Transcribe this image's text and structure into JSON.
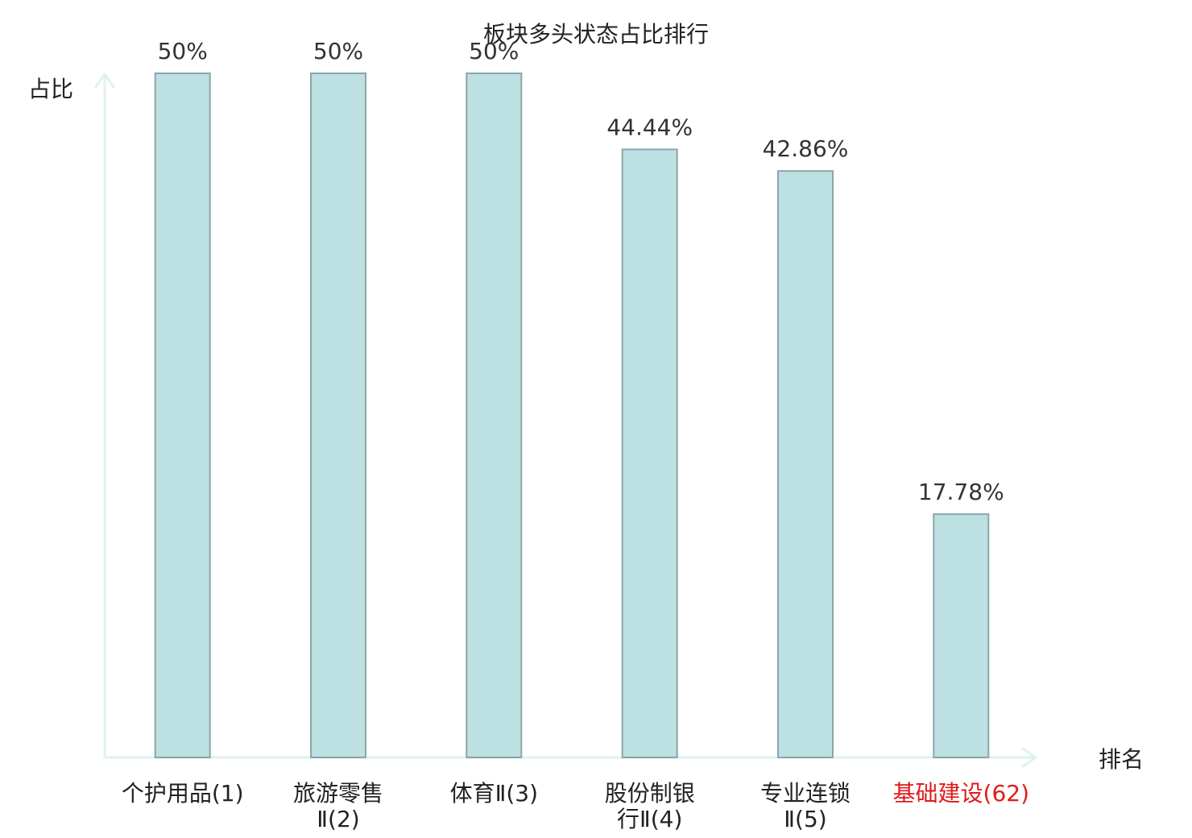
{
  "chart_data": {
    "type": "bar",
    "title": "板块多头状态占比排行",
    "xlabel": "排名",
    "ylabel": "占比",
    "categories": [
      [
        "个护用品(1)"
      ],
      [
        "旅游零售",
        "Ⅱ(2)"
      ],
      [
        "体育Ⅱ(3)"
      ],
      [
        "股份制银",
        "行Ⅱ(4)"
      ],
      [
        "专业连锁",
        "Ⅱ(5)"
      ],
      [
        "基础建设(62)"
      ]
    ],
    "values": [
      50,
      50,
      50,
      44.44,
      42.86,
      17.78
    ],
    "value_labels": [
      "50%",
      "50%",
      "50%",
      "44.44%",
      "42.86%",
      "17.78%"
    ],
    "highlight_index": 5,
    "ylim": [
      0,
      50
    ],
    "grid": false,
    "colors": {
      "bar_fill": "#bde0e3",
      "bar_stroke": "#8aa6a8",
      "axis": "#dff2f0",
      "highlight_text": "#e01a1a",
      "normal_text": "#222222"
    }
  }
}
